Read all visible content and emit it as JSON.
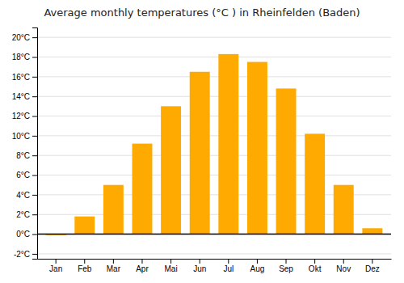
{
  "chart_data": {
    "type": "bar",
    "title": "Average monthly temperatures (°C ) in Rheinfelden (Baden)",
    "categories": [
      "Jan",
      "Feb",
      "Mar",
      "Apr",
      "Mai",
      "Jun",
      "Jul",
      "Aug",
      "Sep",
      "Okt",
      "Nov",
      "Dez"
    ],
    "values": [
      -0.1,
      1.8,
      5.0,
      9.2,
      13.0,
      16.5,
      18.3,
      17.5,
      14.8,
      10.2,
      5.0,
      0.6
    ],
    "color": "#FFAA00",
    "ylim": [
      -2.5,
      21
    ],
    "yticks": [
      {
        "value": -2,
        "label": "-2°C"
      },
      {
        "value": 0,
        "label": "0°C"
      },
      {
        "value": 2,
        "label": "2°C"
      },
      {
        "value": 4,
        "label": "4°C"
      },
      {
        "value": 6,
        "label": "6°C"
      },
      {
        "value": 8,
        "label": "8°C"
      },
      {
        "value": 10,
        "label": "10°C"
      },
      {
        "value": 12,
        "label": "12°C"
      },
      {
        "value": 14,
        "label": "14°C"
      },
      {
        "value": 16,
        "label": "16°C"
      },
      {
        "value": 18,
        "label": "18°C"
      },
      {
        "value": 20,
        "label": "20°C"
      }
    ],
    "grid": true
  }
}
